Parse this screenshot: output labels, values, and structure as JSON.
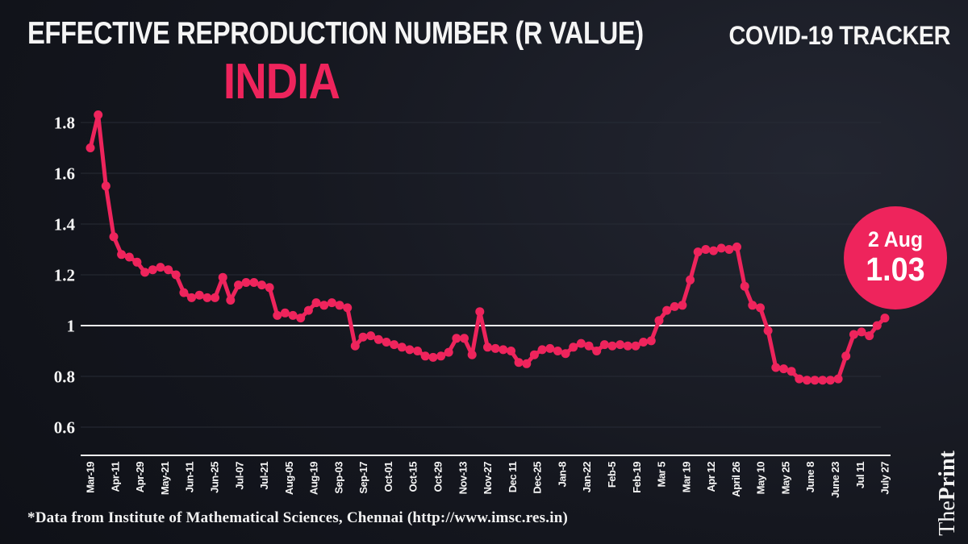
{
  "header": {
    "title": "EFFECTIVE REPRODUCTION NUMBER (R VALUE)",
    "subtitle": "INDIA",
    "tracker_label": "COVID-19 TRACKER"
  },
  "badge": {
    "date": "2 Aug",
    "value": "1.03"
  },
  "footer": {
    "source": "*Data from Institute of Mathematical Sciences, Chennai (http://www.imsc.res.in)"
  },
  "brand": {
    "the": "The",
    "print": "Print"
  },
  "colors": {
    "accent_pink": "#ee245c",
    "background_dark": "#0d0f15",
    "grid_gray": "#272b35",
    "baseline_white": "#f2f2f2",
    "text_white": "#f5f5f5"
  },
  "chart_data": {
    "type": "line",
    "title": "Effective Reproduction Number (R value) - India",
    "xlabel": "",
    "ylabel": "",
    "grid": "horizontal-only",
    "legend_position": "none",
    "ylim": [
      0.49,
      1.9
    ],
    "baseline_value": 1,
    "y_ticks": [
      "1.8",
      "1.6",
      "1.4",
      "1.2",
      "1",
      "0.8",
      "0.6"
    ],
    "x_tick_labels": [
      "Mar-19",
      "Apr-11",
      "Apr-29",
      "May-21",
      "Jun-11",
      "Jun-25",
      "Jul-07",
      "Jul-21",
      "Aug-05",
      "Aug-19",
      "Sep-03",
      "Sep-17",
      "Oct-01",
      "Oct-15",
      "Oct-29",
      "Nov-13",
      "Nov-27",
      "Dec 11",
      "Dec-25",
      "Jan-8",
      "Jan-22",
      "Feb-5",
      "Feb-19",
      "Mar 5",
      "Mar 19",
      "Apr 12",
      "April 26",
      "May 10",
      "May 25",
      "June 8",
      "June 23",
      "Jul 11",
      "July 27"
    ],
    "series": [
      {
        "name": "R value",
        "color": "#ee245c",
        "values": [
          1.7,
          1.83,
          1.55,
          1.35,
          1.28,
          1.27,
          1.25,
          1.21,
          1.22,
          1.23,
          1.22,
          1.2,
          1.13,
          1.11,
          1.12,
          1.11,
          1.11,
          1.19,
          1.1,
          1.16,
          1.17,
          1.17,
          1.16,
          1.15,
          1.04,
          1.05,
          1.04,
          1.03,
          1.06,
          1.09,
          1.08,
          1.09,
          1.08,
          1.07,
          0.92,
          0.955,
          0.96,
          0.945,
          0.935,
          0.925,
          0.915,
          0.905,
          0.9,
          0.88,
          0.875,
          0.88,
          0.895,
          0.95,
          0.95,
          0.885,
          1.055,
          0.915,
          0.91,
          0.905,
          0.9,
          0.855,
          0.85,
          0.885,
          0.905,
          0.91,
          0.9,
          0.89,
          0.915,
          0.93,
          0.92,
          0.9,
          0.925,
          0.92,
          0.925,
          0.92,
          0.92,
          0.935,
          0.94,
          1.02,
          1.06,
          1.075,
          1.08,
          1.18,
          1.29,
          1.3,
          1.295,
          1.305,
          1.3,
          1.31,
          1.155,
          1.08,
          1.07,
          0.98,
          0.835,
          0.83,
          0.82,
          0.79,
          0.785,
          0.785,
          0.785,
          0.785,
          0.79,
          0.88,
          0.965,
          0.975,
          0.96,
          1.0,
          1.03
        ]
      }
    ],
    "last_point_annotation": {
      "date": "2 Aug",
      "value": 1.03
    }
  }
}
